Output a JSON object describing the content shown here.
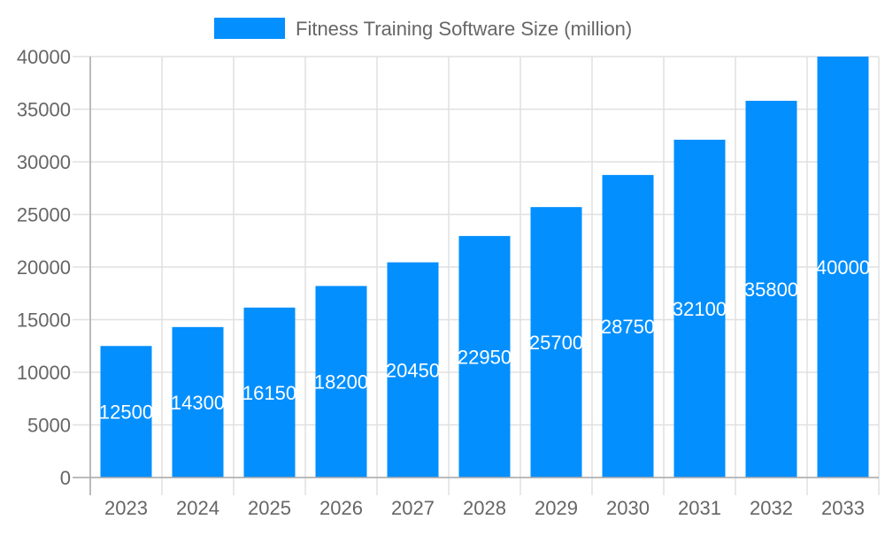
{
  "chart_data": {
    "type": "bar",
    "title": "",
    "xlabel": "",
    "ylabel": "",
    "categories": [
      "2023",
      "2024",
      "2025",
      "2026",
      "2027",
      "2028",
      "2029",
      "2030",
      "2031",
      "2032",
      "2033"
    ],
    "series": [
      {
        "name": "Fitness Training Software Size (million)",
        "values": [
          12500,
          14300,
          16150,
          18200,
          20450,
          22950,
          25700,
          28750,
          32100,
          35800,
          40000
        ],
        "color": "#038FFE"
      }
    ],
    "ylim": [
      0,
      40000
    ],
    "yticks": [
      0,
      5000,
      10000,
      15000,
      20000,
      25000,
      30000,
      35000,
      40000
    ],
    "grid": true,
    "legend": "top-center",
    "data_labels": true
  }
}
